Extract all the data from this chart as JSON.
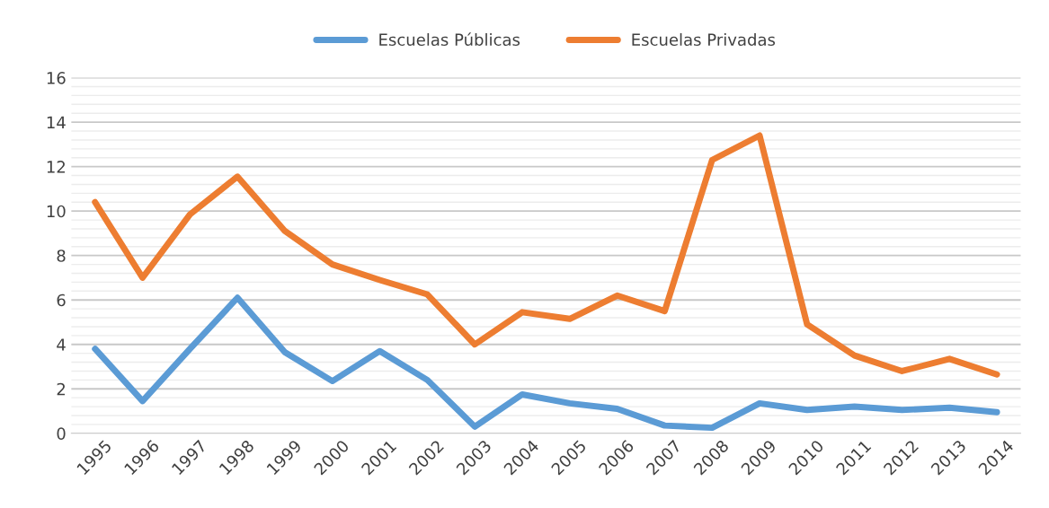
{
  "chart_data": {
    "type": "line",
    "categories": [
      "1995",
      "1996",
      "1997",
      "1998",
      "1999",
      "2000",
      "2001",
      "2002",
      "2003",
      "2004",
      "2005",
      "2006",
      "2007",
      "2008",
      "2009",
      "2010",
      "2011",
      "2012",
      "2013",
      "2014"
    ],
    "series": [
      {
        "name": "Escuelas Públicas",
        "color": "#5b9bd5",
        "values": [
          3.8,
          1.45,
          3.8,
          6.1,
          3.65,
          2.35,
          3.7,
          2.4,
          0.3,
          1.75,
          1.35,
          1.1,
          0.35,
          0.25,
          1.35,
          1.05,
          1.2,
          1.05,
          1.15,
          0.95
        ]
      },
      {
        "name": "Escuelas Privadas",
        "color": "#ed7d31",
        "values": [
          10.4,
          7.0,
          9.85,
          11.55,
          9.1,
          7.6,
          6.9,
          6.25,
          4.0,
          5.45,
          5.15,
          6.2,
          5.5,
          12.3,
          13.4,
          4.9,
          3.5,
          2.8,
          3.35,
          2.65
        ]
      }
    ],
    "ylim": [
      0,
      16
    ],
    "yticks": [
      0,
      2,
      4,
      6,
      8,
      10,
      12,
      14,
      16
    ],
    "grid": "y",
    "legend": "top",
    "marker": "none",
    "line_style": "solid"
  }
}
